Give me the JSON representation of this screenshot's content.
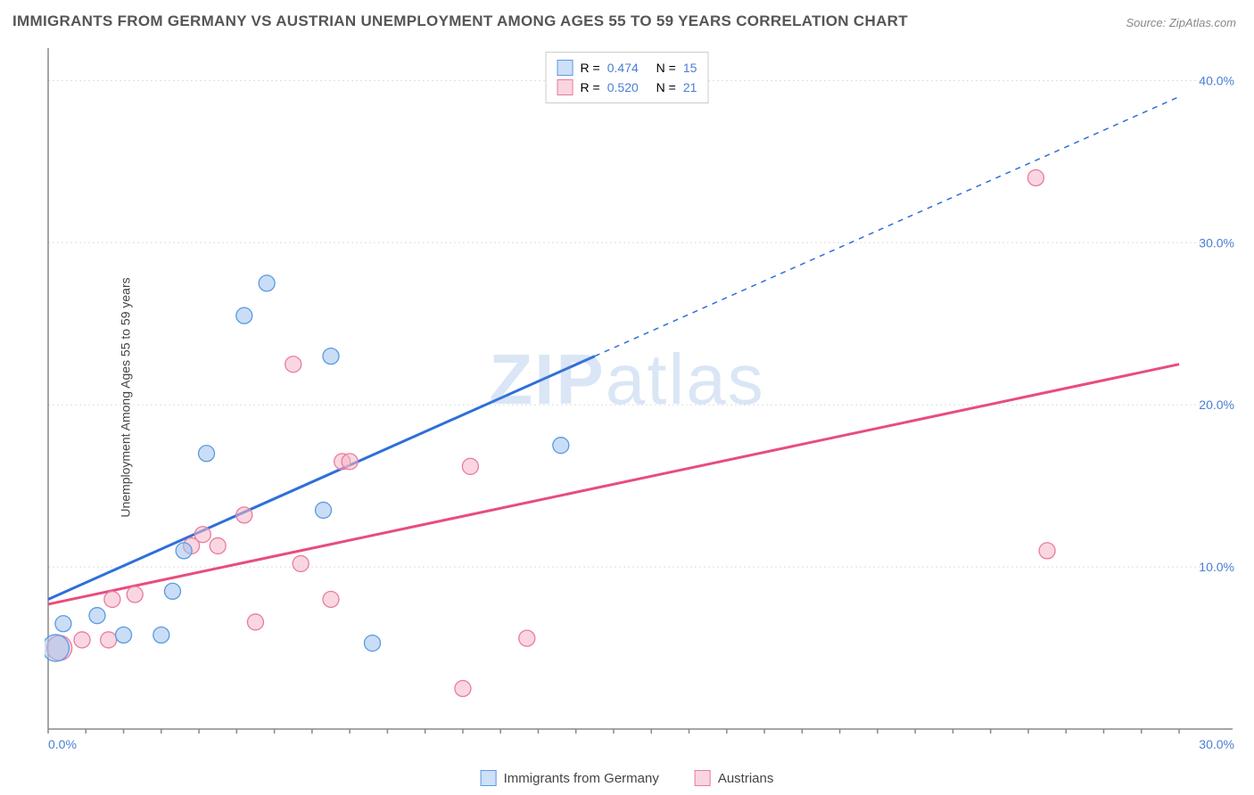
{
  "title": "IMMIGRANTS FROM GERMANY VS AUSTRIAN UNEMPLOYMENT AMONG AGES 55 TO 59 YEARS CORRELATION CHART",
  "source": "Source: ZipAtlas.com",
  "watermark": {
    "zip": "ZIP",
    "atlas": "atlas"
  },
  "y_axis_label": "Unemployment Among Ages 55 to 59 years",
  "chart": {
    "type": "scatter",
    "xlim": [
      0,
      30
    ],
    "ylim": [
      0,
      42
    ],
    "x_ticks": [
      {
        "v": 0,
        "l": "0.0%"
      },
      {
        "v": 30,
        "l": "30.0%"
      }
    ],
    "y_ticks": [
      {
        "v": 10,
        "l": "10.0%"
      },
      {
        "v": 20,
        "l": "20.0%"
      },
      {
        "v": 30,
        "l": "30.0%"
      },
      {
        "v": 40,
        "l": "40.0%"
      }
    ],
    "grid_color": "#dddddd",
    "background_color": "#ffffff",
    "series": {
      "germany": {
        "label": "Immigrants from Germany",
        "color_fill": "#9cc3ee",
        "color_stroke": "#5a9ae0",
        "R": "0.474",
        "N": "15",
        "trend": {
          "x1": 0,
          "y1": 8.0,
          "x2_solid": 14.5,
          "y2_solid": 23.0,
          "x2_dash": 30,
          "y2_dash": 39.0
        },
        "points": [
          {
            "x": 0.2,
            "y": 5.0,
            "r": 15
          },
          {
            "x": 0.4,
            "y": 6.5,
            "r": 9
          },
          {
            "x": 1.3,
            "y": 7.0,
            "r": 9
          },
          {
            "x": 2.0,
            "y": 5.8,
            "r": 9
          },
          {
            "x": 3.0,
            "y": 5.8,
            "r": 9
          },
          {
            "x": 3.3,
            "y": 8.5,
            "r": 9
          },
          {
            "x": 3.6,
            "y": 11.0,
            "r": 9
          },
          {
            "x": 4.2,
            "y": 17.0,
            "r": 9
          },
          {
            "x": 5.2,
            "y": 25.5,
            "r": 9
          },
          {
            "x": 5.8,
            "y": 27.5,
            "r": 9
          },
          {
            "x": 7.5,
            "y": 23.0,
            "r": 9
          },
          {
            "x": 7.3,
            "y": 13.5,
            "r": 9
          },
          {
            "x": 8.6,
            "y": 5.3,
            "r": 9
          },
          {
            "x": 13.6,
            "y": 17.5,
            "r": 9
          }
        ]
      },
      "austria": {
        "label": "Austrians",
        "color_fill": "#f5b6c6",
        "color_stroke": "#e87ba0",
        "R": "0.520",
        "N": "21",
        "trend": {
          "x1": 0,
          "y1": 7.7,
          "x2": 30,
          "y2": 22.5
        },
        "points": [
          {
            "x": 0.3,
            "y": 5.0,
            "r": 14
          },
          {
            "x": 0.9,
            "y": 5.5,
            "r": 9
          },
          {
            "x": 1.6,
            "y": 5.5,
            "r": 9
          },
          {
            "x": 1.7,
            "y": 8.0,
            "r": 9
          },
          {
            "x": 2.3,
            "y": 8.3,
            "r": 9
          },
          {
            "x": 3.8,
            "y": 11.3,
            "r": 9
          },
          {
            "x": 4.1,
            "y": 12.0,
            "r": 9
          },
          {
            "x": 4.5,
            "y": 11.3,
            "r": 9
          },
          {
            "x": 5.2,
            "y": 13.2,
            "r": 9
          },
          {
            "x": 5.5,
            "y": 6.6,
            "r": 9
          },
          {
            "x": 6.5,
            "y": 22.5,
            "r": 9
          },
          {
            "x": 6.7,
            "y": 10.2,
            "r": 9
          },
          {
            "x": 7.5,
            "y": 8.0,
            "r": 9
          },
          {
            "x": 7.8,
            "y": 16.5,
            "r": 9
          },
          {
            "x": 8.0,
            "y": 16.5,
            "r": 9
          },
          {
            "x": 11.0,
            "y": 2.5,
            "r": 9
          },
          {
            "x": 11.2,
            "y": 16.2,
            "r": 9
          },
          {
            "x": 12.7,
            "y": 5.6,
            "r": 9
          },
          {
            "x": 26.5,
            "y": 11.0,
            "r": 9
          },
          {
            "x": 26.2,
            "y": 34.0,
            "r": 9
          }
        ]
      }
    }
  },
  "legend_top": {
    "r_label": "R =",
    "n_label": "N ="
  }
}
